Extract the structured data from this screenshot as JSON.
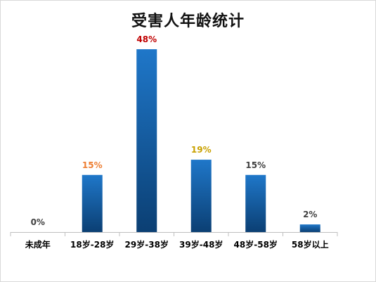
{
  "chart_data": {
    "type": "bar",
    "title": "受害人年龄统计",
    "categories": [
      "未成年",
      "18岁-28岁",
      "29岁-38岁",
      "39岁-48岁",
      "48岁-58岁",
      "58岁以上"
    ],
    "values": [
      0,
      15,
      48,
      19,
      15,
      2
    ],
    "data_labels": [
      "0%",
      "15%",
      "48%",
      "19%",
      "15%",
      "2%"
    ],
    "label_colors": [
      "#404040",
      "#ed7d31",
      "#c00000",
      "#c9a100",
      "#404040",
      "#404040"
    ],
    "bar_color": "#1f77c9",
    "bar_color_dark": "#0b3f73",
    "ylim": [
      0,
      48
    ],
    "grid": false,
    "legend": "none"
  }
}
